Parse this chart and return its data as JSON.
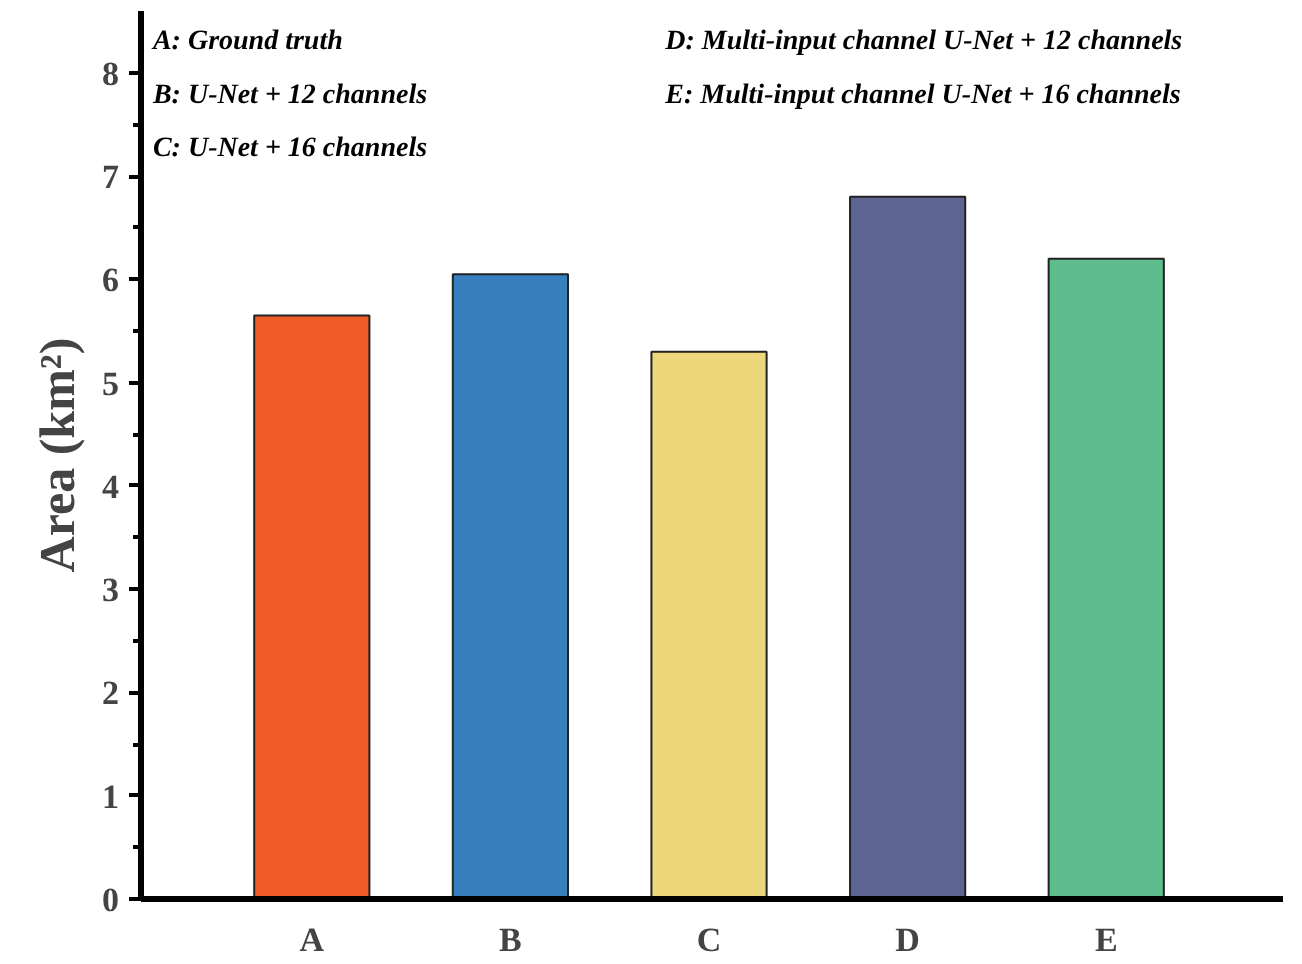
{
  "chart_data": {
    "type": "bar",
    "ylabel": "Area (km²)",
    "categories": [
      "A",
      "B",
      "C",
      "D",
      "E"
    ],
    "values": [
      5.65,
      6.05,
      5.3,
      6.8,
      6.2
    ],
    "colors": [
      "#f05a28",
      "#3780bd",
      "#ecd77a",
      "#5f6592",
      "#5dbd8c"
    ],
    "ylim": [
      0,
      8.6
    ],
    "yticks": [
      0,
      1,
      2,
      3,
      4,
      5,
      6,
      7,
      8
    ],
    "grid": false,
    "annotations": [
      "A: Ground truth",
      "B: U-Net + 12 channels",
      "C: U-Net + 16 channels",
      "D: Multi-input channel U-Net + 12 channels",
      "E: Multi-input channel U-Net + 16 channels"
    ]
  }
}
